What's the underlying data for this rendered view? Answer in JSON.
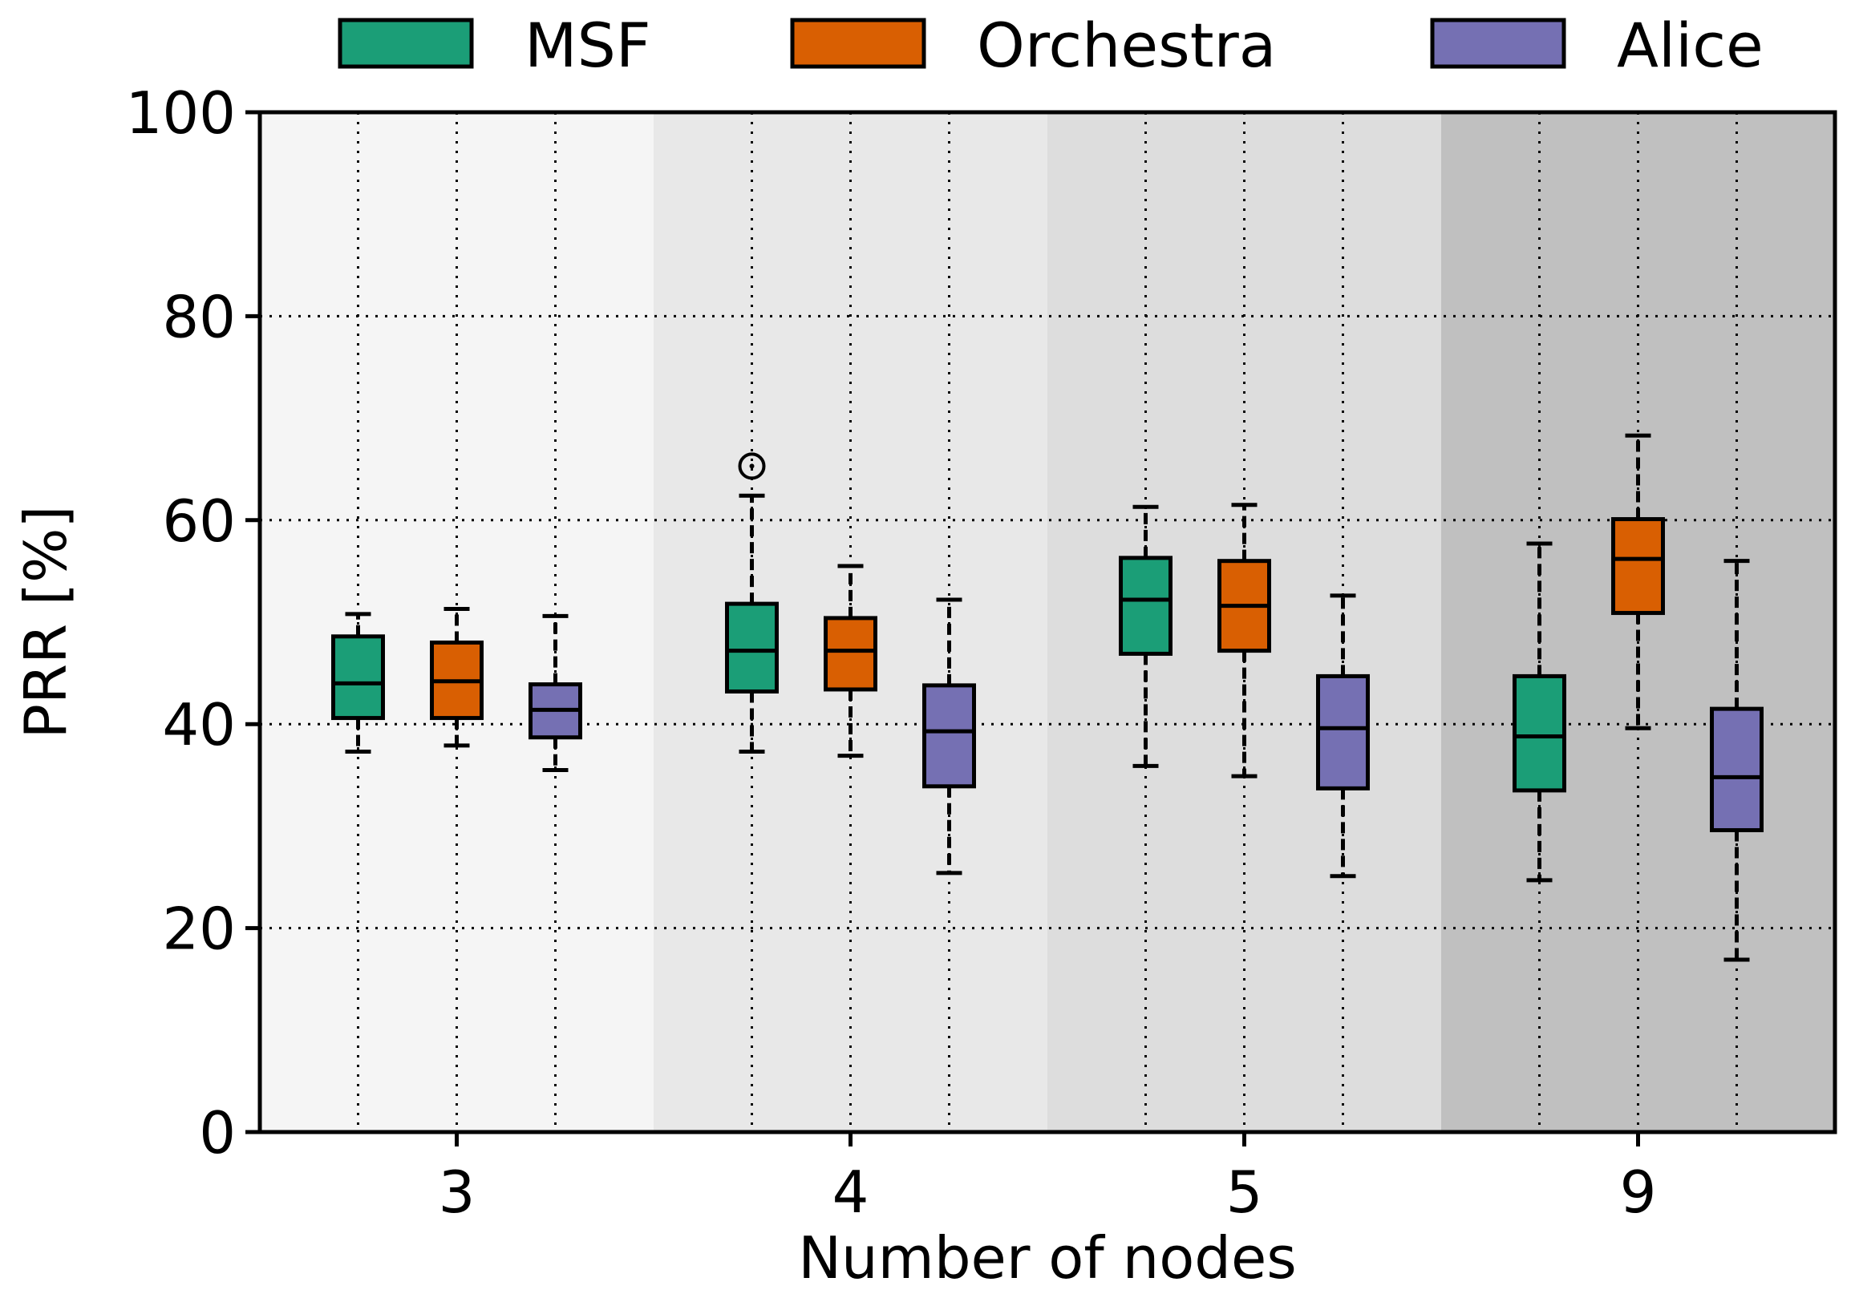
{
  "chart_data": {
    "type": "boxplot",
    "title": "",
    "xlabel": "Number of nodes",
    "ylabel": "PRR [%]",
    "ylim": [
      0,
      100
    ],
    "yticks": [
      0,
      20,
      40,
      60,
      80,
      100
    ],
    "grid": true,
    "legend_position": "top-center",
    "categories": [
      "3",
      "4",
      "5",
      "9"
    ],
    "group_backgrounds": [
      "#f5f5f5",
      "#e8e8e8",
      "#dddddd",
      "#c0c0c0"
    ],
    "series": [
      {
        "name": "MSF",
        "color": "#1b9e77",
        "boxes": [
          {
            "whisker_low": 37.3,
            "q1": 40.6,
            "median": 44.0,
            "q3": 48.6,
            "whisker_high": 50.8,
            "outliers": []
          },
          {
            "whisker_low": 37.3,
            "q1": 43.2,
            "median": 47.2,
            "q3": 51.8,
            "whisker_high": 62.4,
            "outliers": [
              65.3
            ]
          },
          {
            "whisker_low": 35.9,
            "q1": 46.9,
            "median": 52.2,
            "q3": 56.3,
            "whisker_high": 61.3,
            "outliers": []
          },
          {
            "whisker_low": 24.7,
            "q1": 33.5,
            "median": 38.8,
            "q3": 44.7,
            "whisker_high": 57.7,
            "outliers": []
          }
        ]
      },
      {
        "name": "Orchestra",
        "color": "#d95f02",
        "boxes": [
          {
            "whisker_low": 37.9,
            "q1": 40.6,
            "median": 44.2,
            "q3": 48.0,
            "whisker_high": 51.3,
            "outliers": []
          },
          {
            "whisker_low": 36.9,
            "q1": 43.4,
            "median": 47.2,
            "q3": 50.4,
            "whisker_high": 55.5,
            "outliers": []
          },
          {
            "whisker_low": 34.9,
            "q1": 47.2,
            "median": 51.6,
            "q3": 56.0,
            "whisker_high": 61.5,
            "outliers": []
          },
          {
            "whisker_low": 39.6,
            "q1": 50.9,
            "median": 56.2,
            "q3": 60.1,
            "whisker_high": 68.3,
            "outliers": []
          }
        ]
      },
      {
        "name": "Alice",
        "color": "#7570b3",
        "boxes": [
          {
            "whisker_low": 35.5,
            "q1": 38.7,
            "median": 41.4,
            "q3": 43.9,
            "whisker_high": 50.6,
            "outliers": []
          },
          {
            "whisker_low": 25.4,
            "q1": 33.9,
            "median": 39.3,
            "q3": 43.8,
            "whisker_high": 52.2,
            "outliers": []
          },
          {
            "whisker_low": 25.1,
            "q1": 33.7,
            "median": 39.6,
            "q3": 44.7,
            "whisker_high": 52.6,
            "outliers": []
          },
          {
            "whisker_low": 16.9,
            "q1": 29.6,
            "median": 34.8,
            "q3": 41.5,
            "whisker_high": 56.0,
            "outliers": []
          }
        ]
      }
    ]
  }
}
